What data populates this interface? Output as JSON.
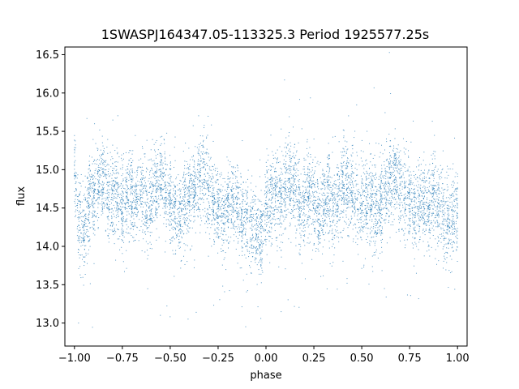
{
  "chart_data": {
    "type": "scatter",
    "title": "1SWASPJ164347.05-113325.3 Period 1925577.25s",
    "xlabel": "phase",
    "ylabel": "flux",
    "xlim": [
      -1.05,
      1.05
    ],
    "ylim": [
      12.7,
      16.6
    ],
    "x_ticks": [
      -1.0,
      -0.75,
      -0.5,
      -0.25,
      0.0,
      0.25,
      0.5,
      0.75,
      1.0
    ],
    "x_tick_labels": [
      "−1.00",
      "−0.75",
      "−0.50",
      "−0.25",
      "0.00",
      "0.25",
      "0.50",
      "0.75",
      "1.00"
    ],
    "y_ticks": [
      13.0,
      13.5,
      14.0,
      14.5,
      15.0,
      15.5,
      16.0,
      16.5
    ],
    "y_tick_labels": [
      "13.0",
      "13.5",
      "14.0",
      "14.5",
      "15.0",
      "15.5",
      "16.0",
      "16.5"
    ],
    "grid": false,
    "legend": "none",
    "marker_color": "#1f77b4",
    "series": [
      {
        "points_sampled": [
          [
            -1.0,
            15.0
          ],
          [
            -0.98,
            14.3
          ],
          [
            -0.95,
            14.2
          ],
          [
            -0.92,
            14.6
          ],
          [
            -0.88,
            14.8
          ],
          [
            -0.85,
            14.9
          ],
          [
            -0.82,
            14.6
          ],
          [
            -0.78,
            14.7
          ],
          [
            -0.75,
            14.4
          ],
          [
            -0.72,
            14.7
          ],
          [
            -0.68,
            14.6
          ],
          [
            -0.65,
            14.7
          ],
          [
            -0.62,
            14.5
          ],
          [
            -0.58,
            14.8
          ],
          [
            -0.55,
            14.9
          ],
          [
            -0.52,
            14.7
          ],
          [
            -0.48,
            14.5
          ],
          [
            -0.45,
            14.4
          ],
          [
            -0.42,
            14.6
          ],
          [
            -0.38,
            14.7
          ],
          [
            -0.35,
            14.8
          ],
          [
            -0.32,
            14.9
          ],
          [
            -0.28,
            14.6
          ],
          [
            -0.25,
            14.5
          ],
          [
            -0.22,
            14.4
          ],
          [
            -0.18,
            14.6
          ],
          [
            -0.15,
            14.5
          ],
          [
            -0.12,
            14.4
          ],
          [
            -0.08,
            14.3
          ],
          [
            -0.05,
            14.2
          ],
          [
            -0.02,
            14.1
          ],
          [
            0.0,
            14.5
          ],
          [
            0.02,
            14.6
          ],
          [
            0.05,
            14.7
          ],
          [
            0.08,
            14.6
          ],
          [
            0.12,
            14.9
          ],
          [
            0.15,
            14.8
          ],
          [
            0.18,
            14.5
          ],
          [
            0.22,
            14.7
          ],
          [
            0.25,
            14.6
          ],
          [
            0.28,
            14.4
          ],
          [
            0.32,
            14.7
          ],
          [
            0.35,
            14.5
          ],
          [
            0.38,
            14.6
          ],
          [
            0.42,
            14.8
          ],
          [
            0.45,
            14.7
          ],
          [
            0.48,
            14.5
          ],
          [
            0.52,
            14.6
          ],
          [
            0.55,
            14.6
          ],
          [
            0.58,
            14.4
          ],
          [
            0.62,
            14.7
          ],
          [
            0.65,
            14.8
          ],
          [
            0.68,
            14.9
          ],
          [
            0.72,
            14.6
          ],
          [
            0.75,
            14.7
          ],
          [
            0.78,
            14.4
          ],
          [
            0.82,
            14.6
          ],
          [
            0.85,
            14.5
          ],
          [
            0.88,
            14.7
          ],
          [
            0.92,
            14.4
          ],
          [
            0.95,
            14.3
          ],
          [
            0.98,
            14.4
          ]
        ]
      }
    ]
  }
}
